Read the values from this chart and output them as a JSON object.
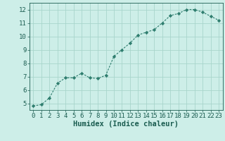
{
  "x": [
    0,
    1,
    2,
    3,
    4,
    5,
    6,
    7,
    8,
    9,
    10,
    11,
    12,
    13,
    14,
    15,
    16,
    17,
    18,
    19,
    20,
    21,
    22,
    23
  ],
  "y": [
    4.8,
    4.9,
    5.4,
    6.5,
    6.9,
    6.9,
    7.25,
    6.9,
    6.85,
    7.1,
    8.5,
    9.0,
    9.5,
    10.1,
    10.3,
    10.5,
    11.0,
    11.55,
    11.7,
    12.0,
    12.0,
    11.8,
    11.5,
    11.2
  ],
  "line_color": "#2e7d6e",
  "marker": "D",
  "marker_size": 2.2,
  "bg_color": "#cdeee8",
  "grid_color": "#a8d5cc",
  "axis_color": "#1a5c50",
  "xlabel": "Humidex (Indice chaleur)",
  "xlim": [
    -0.5,
    23.5
  ],
  "ylim": [
    4.5,
    12.5
  ],
  "yticks": [
    5,
    6,
    7,
    8,
    9,
    10,
    11,
    12
  ],
  "xticks": [
    0,
    1,
    2,
    3,
    4,
    5,
    6,
    7,
    8,
    9,
    10,
    11,
    12,
    13,
    14,
    15,
    16,
    17,
    18,
    19,
    20,
    21,
    22,
    23
  ],
  "tick_fontsize": 6.5,
  "xlabel_fontsize": 7.5
}
